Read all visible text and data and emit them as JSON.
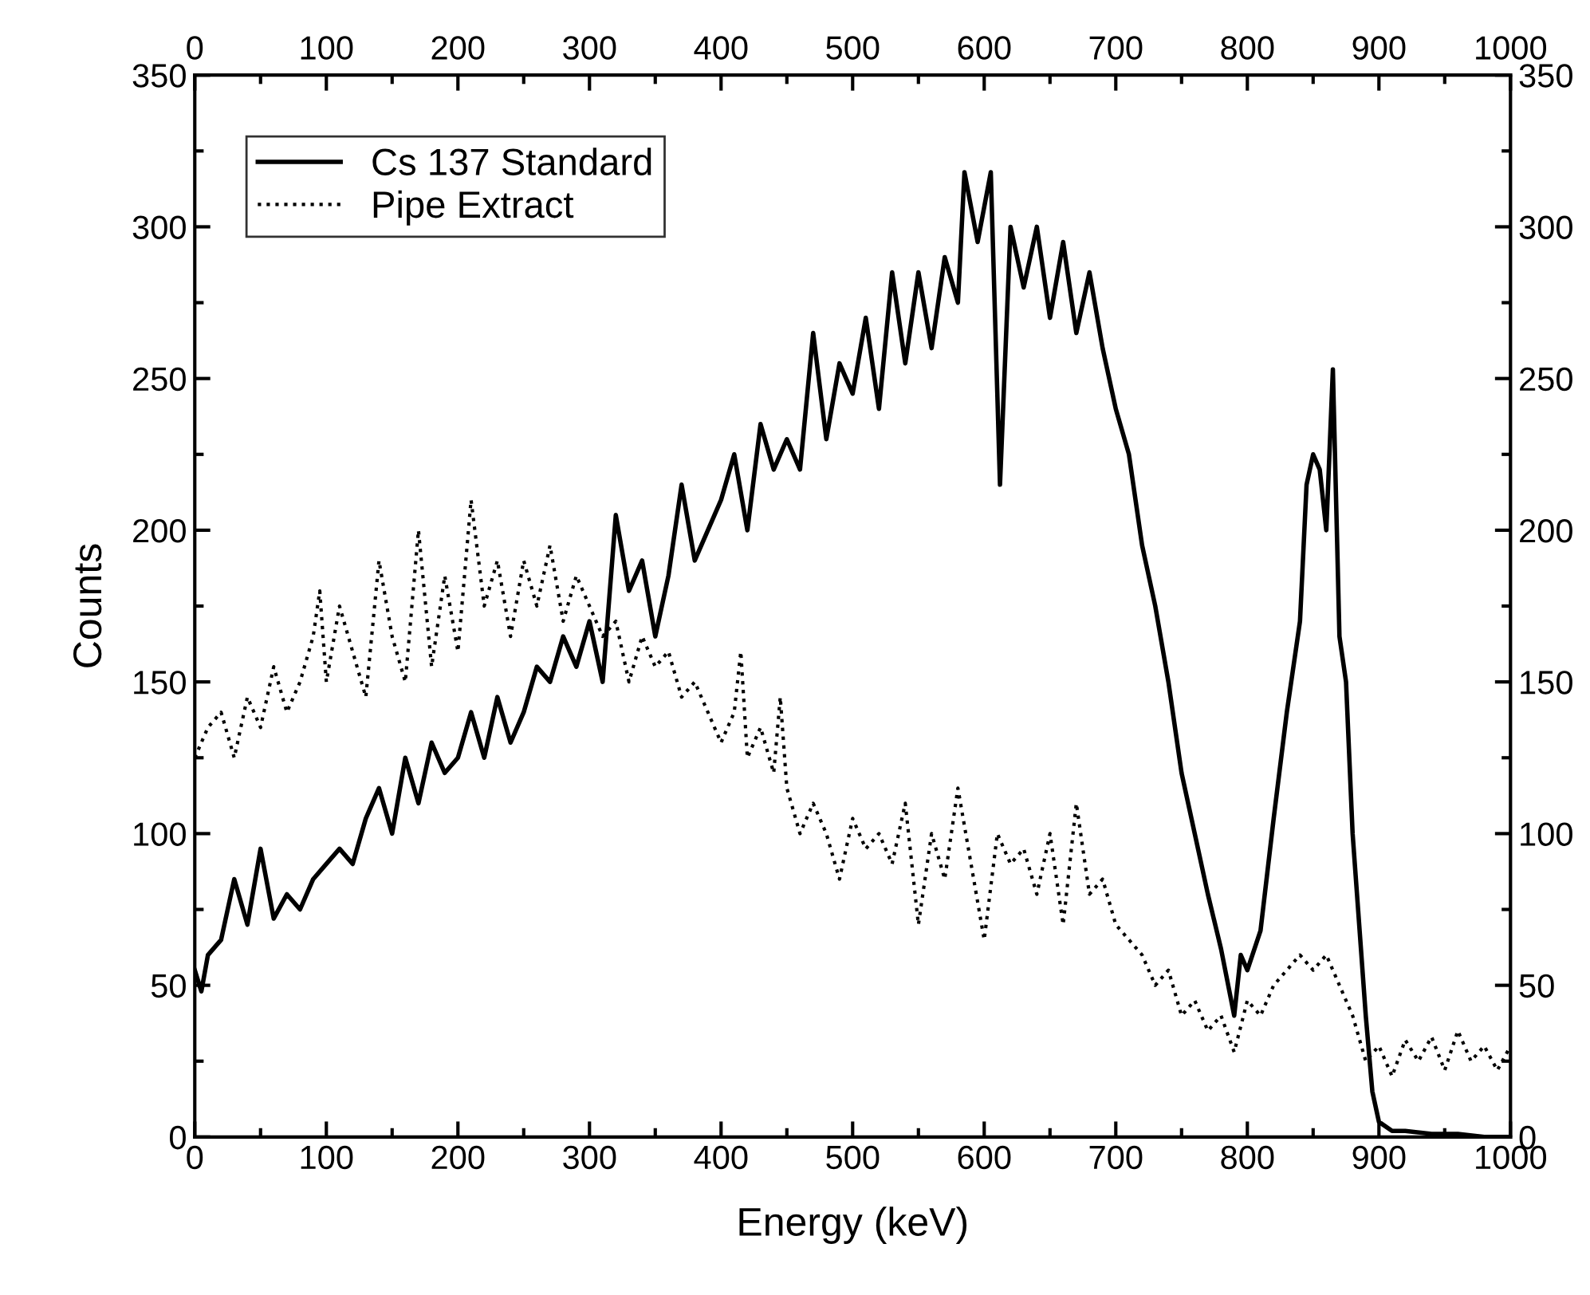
{
  "chart_data": {
    "type": "line",
    "xlabel": "Energy (keV)",
    "ylabel": "Counts",
    "xlim": [
      0,
      1000
    ],
    "ylim": [
      0,
      350
    ],
    "xticks": [
      0,
      {
        "value": 50,
        "label": null
      },
      100,
      {
        "value": 150,
        "label": null
      },
      200,
      {
        "value": 250,
        "label": null
      },
      300,
      {
        "value": 350,
        "label": null
      },
      400,
      {
        "value": 450,
        "label": null
      },
      500,
      {
        "value": 550,
        "label": null
      },
      600,
      {
        "value": 650,
        "label": null
      },
      700,
      {
        "value": 750,
        "label": null
      },
      800,
      {
        "value": 850,
        "label": null
      },
      900,
      {
        "value": 950,
        "label": null
      },
      1000
    ],
    "yticks": [
      0,
      {
        "value": 25,
        "label": null
      },
      50,
      {
        "value": 75,
        "label": null
      },
      100,
      {
        "value": 125,
        "label": null
      },
      150,
      {
        "value": 175,
        "label": null
      },
      200,
      {
        "value": 225,
        "label": null
      },
      250,
      {
        "value": 275,
        "label": null
      },
      300,
      {
        "value": 325,
        "label": null
      },
      350
    ],
    "x2lim": [
      0,
      1000
    ],
    "x2ticks": [
      0,
      {
        "value": 50,
        "label": null
      },
      100,
      {
        "value": 150,
        "label": null
      },
      200,
      {
        "value": 250,
        "label": null
      },
      300,
      {
        "value": 350,
        "label": null
      },
      400,
      {
        "value": 450,
        "label": null
      },
      500,
      {
        "value": 550,
        "label": null
      },
      600,
      {
        "value": 650,
        "label": null
      },
      700,
      {
        "value": 750,
        "label": null
      },
      800,
      {
        "value": 850,
        "label": null
      },
      900,
      {
        "value": 950,
        "label": null
      },
      1000
    ],
    "y2lim": [
      0,
      350
    ],
    "y2ticks": [
      0,
      {
        "value": 25,
        "label": null
      },
      50,
      {
        "value": 75,
        "label": null
      },
      100,
      {
        "value": 125,
        "label": null
      },
      150,
      {
        "value": 175,
        "label": null
      },
      200,
      {
        "value": 225,
        "label": null
      },
      250,
      {
        "value": 275,
        "label": null
      },
      300,
      {
        "value": 325,
        "label": null
      },
      350
    ],
    "grid": false,
    "legend": "top left",
    "marker": "none",
    "series": [
      {
        "name": "Cs 137 Standard",
        "color": "#000000",
        "line_style": "solid",
        "x": [
          0,
          5,
          10,
          20,
          30,
          40,
          50,
          60,
          70,
          80,
          90,
          100,
          110,
          120,
          130,
          140,
          150,
          160,
          170,
          180,
          190,
          200,
          210,
          220,
          230,
          240,
          250,
          260,
          270,
          280,
          290,
          300,
          310,
          320,
          330,
          340,
          350,
          360,
          370,
          380,
          390,
          400,
          410,
          420,
          430,
          440,
          450,
          460,
          470,
          480,
          490,
          500,
          510,
          520,
          530,
          540,
          550,
          560,
          570,
          580,
          585,
          595,
          605,
          612,
          620,
          630,
          640,
          650,
          660,
          670,
          680,
          690,
          700,
          710,
          720,
          730,
          740,
          750,
          760,
          770,
          780,
          790,
          795,
          800,
          810,
          820,
          830,
          835,
          840,
          845,
          850,
          855,
          860,
          865,
          870,
          875,
          880,
          890,
          895,
          900,
          910,
          920,
          940,
          960,
          980,
          1000
        ],
        "values": [
          55,
          48,
          60,
          65,
          85,
          70,
          95,
          72,
          80,
          75,
          85,
          90,
          95,
          90,
          105,
          115,
          100,
          125,
          110,
          130,
          120,
          125,
          140,
          125,
          145,
          130,
          140,
          155,
          150,
          165,
          155,
          170,
          150,
          205,
          180,
          190,
          165,
          185,
          215,
          190,
          200,
          210,
          225,
          200,
          235,
          220,
          230,
          220,
          265,
          230,
          255,
          245,
          270,
          240,
          285,
          255,
          285,
          260,
          290,
          275,
          318,
          295,
          318,
          215,
          300,
          280,
          300,
          270,
          295,
          265,
          285,
          260,
          240,
          225,
          195,
          175,
          150,
          120,
          100,
          80,
          62,
          40,
          60,
          55,
          68,
          105,
          140,
          155,
          170,
          215,
          225,
          220,
          200,
          253,
          165,
          150,
          100,
          40,
          15,
          5,
          2,
          2,
          1,
          1,
          0,
          0
        ]
      },
      {
        "name": "Pipe Extract",
        "color": "#000000",
        "line_style": "dotted",
        "x": [
          0,
          10,
          20,
          30,
          40,
          50,
          60,
          70,
          80,
          90,
          95,
          100,
          110,
          120,
          130,
          140,
          150,
          160,
          170,
          180,
          190,
          200,
          210,
          220,
          230,
          240,
          250,
          260,
          270,
          280,
          290,
          300,
          310,
          320,
          330,
          340,
          350,
          360,
          370,
          380,
          390,
          400,
          410,
          415,
          420,
          430,
          440,
          445,
          450,
          460,
          470,
          480,
          490,
          500,
          510,
          520,
          530,
          540,
          550,
          560,
          570,
          580,
          590,
          600,
          610,
          620,
          630,
          640,
          650,
          660,
          670,
          680,
          690,
          700,
          710,
          720,
          730,
          740,
          750,
          760,
          770,
          780,
          790,
          800,
          810,
          820,
          830,
          840,
          850,
          860,
          870,
          880,
          890,
          900,
          910,
          920,
          930,
          940,
          950,
          960,
          970,
          980,
          990,
          1000
        ],
        "values": [
          125,
          135,
          140,
          125,
          145,
          135,
          155,
          140,
          150,
          165,
          180,
          150,
          175,
          160,
          145,
          190,
          165,
          150,
          200,
          155,
          185,
          160,
          210,
          175,
          190,
          165,
          190,
          175,
          195,
          170,
          185,
          175,
          165,
          170,
          150,
          165,
          155,
          160,
          145,
          150,
          140,
          130,
          140,
          160,
          125,
          135,
          120,
          145,
          115,
          100,
          110,
          100,
          85,
          105,
          95,
          100,
          90,
          110,
          70,
          100,
          85,
          115,
          90,
          65,
          100,
          90,
          95,
          80,
          100,
          70,
          110,
          80,
          85,
          70,
          65,
          60,
          50,
          55,
          40,
          45,
          35,
          40,
          28,
          45,
          40,
          50,
          55,
          60,
          55,
          60,
          50,
          40,
          25,
          30,
          20,
          32,
          25,
          33,
          22,
          35,
          25,
          30,
          22,
          30
        ]
      }
    ]
  }
}
